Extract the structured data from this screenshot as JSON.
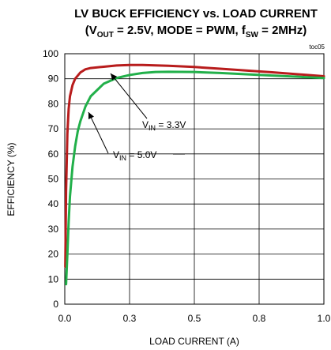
{
  "chart_data": {
    "type": "line",
    "title_line1": "LV BUCK EFFICIENCY vs. LOAD CURRENT",
    "title_line2": {
      "open": "(V",
      "vout_sub": "OUT",
      "mid1": " = 2.5V, MODE = PWM, f",
      "fsw_sub": "SW",
      "mid2": " = 2MHz)"
    },
    "figure_tag": "toc05",
    "xlabel": "LOAD CURRENT  (A)",
    "ylabel": "EFFICIENCY (%)",
    "xlim": [
      0,
      1.0
    ],
    "ylim": [
      0,
      100
    ],
    "grid": true,
    "x_ticks": [
      0,
      0.25,
      0.5,
      0.75,
      1.0
    ],
    "x_tick_labels": [
      "0.0",
      "0.3",
      "0.5",
      "0.8",
      "1.0"
    ],
    "y_ticks": [
      0,
      10,
      20,
      30,
      40,
      50,
      60,
      70,
      80,
      90,
      100
    ],
    "y_tick_labels": [
      "0",
      "10",
      "20",
      "30",
      "40",
      "50",
      "60",
      "70",
      "80",
      "90",
      "100"
    ],
    "series": [
      {
        "key": "vin33",
        "color": "#b81c1c",
        "x": [
          0.002,
          0.005,
          0.01,
          0.015,
          0.02,
          0.03,
          0.04,
          0.06,
          0.08,
          0.1,
          0.15,
          0.2,
          0.25,
          0.3,
          0.4,
          0.5,
          0.6,
          0.7,
          0.8,
          0.9,
          1.0
        ],
        "y": [
          15,
          45,
          68,
          78,
          83,
          87.5,
          90,
          92.5,
          93.8,
          94.3,
          94.8,
          95.3,
          95.5,
          95.5,
          95.2,
          94.7,
          94.0,
          93.3,
          92.6,
          91.8,
          91.0
        ]
      },
      {
        "key": "vin50",
        "color": "#22b04a",
        "x": [
          0.005,
          0.01,
          0.015,
          0.02,
          0.03,
          0.04,
          0.05,
          0.06,
          0.08,
          0.1,
          0.15,
          0.2,
          0.25,
          0.3,
          0.35,
          0.4,
          0.5,
          0.6,
          0.7,
          0.8,
          0.9,
          1.0
        ],
        "y": [
          8,
          20,
          33,
          43,
          55,
          63,
          69,
          73,
          79,
          83,
          88,
          90.3,
          91.5,
          92.3,
          92.7,
          92.8,
          92.7,
          92.3,
          91.8,
          91.3,
          90.8,
          90.3
        ]
      }
    ],
    "annotations": [
      {
        "key": "vin33",
        "prefix": "V",
        "sub": "IN",
        "suffix": " = 3.3V"
      },
      {
        "key": "vin50",
        "prefix": "V",
        "sub": "IN",
        "suffix": " = 5.0V"
      }
    ]
  }
}
